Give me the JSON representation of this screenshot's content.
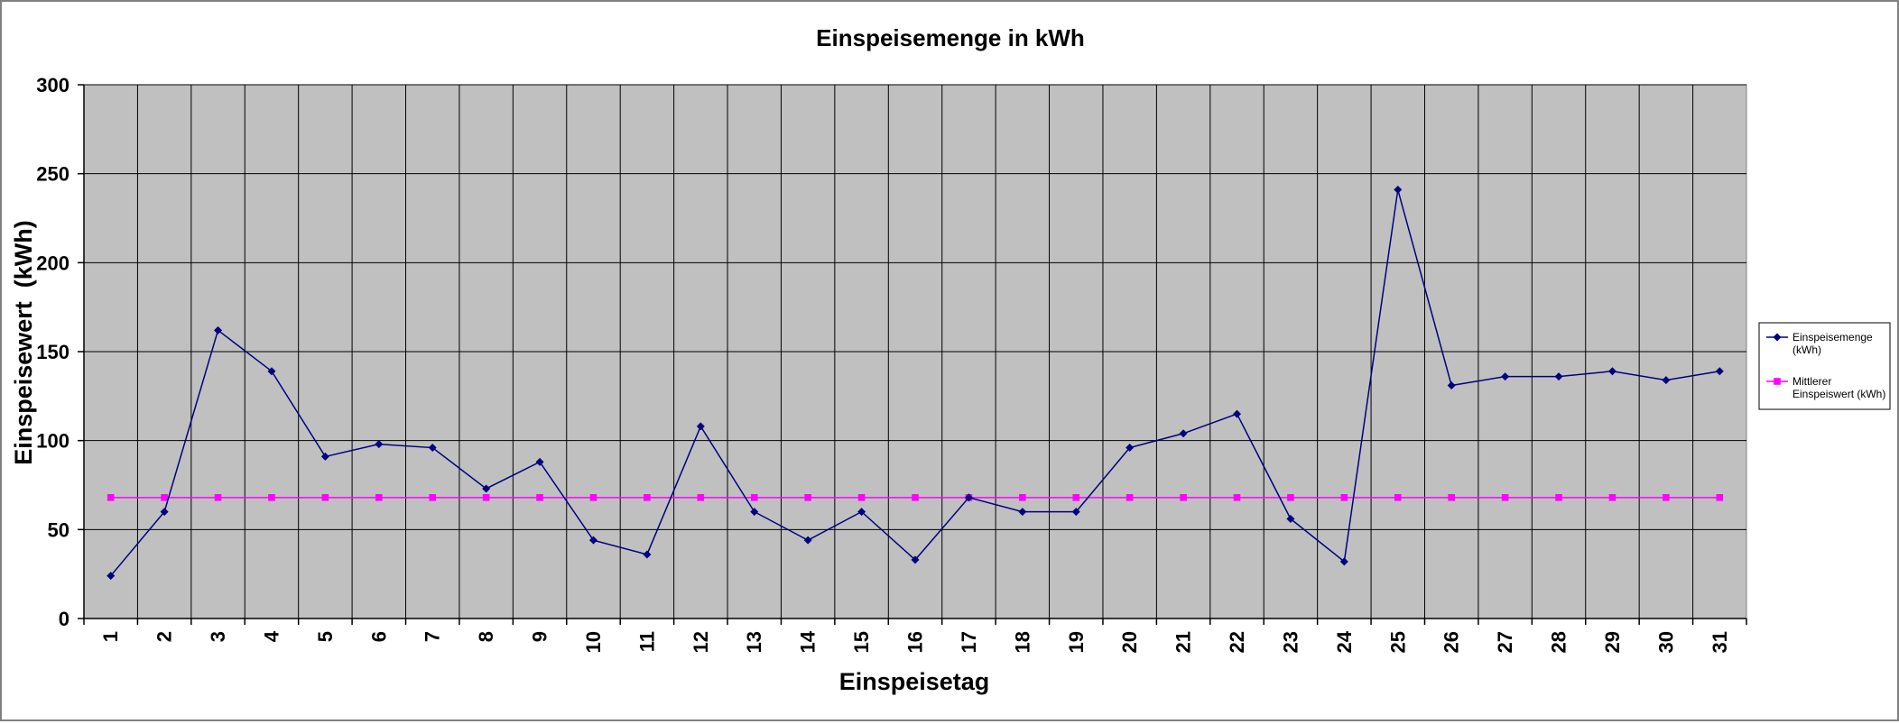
{
  "chart_data": {
    "type": "line",
    "title": "Einspeisemenge in kWh",
    "xlabel": "Einspeisetag",
    "ylabel": "Einspeisewert  (kWh)",
    "ylim": [
      0,
      300
    ],
    "yticks": [
      0,
      50,
      100,
      150,
      200,
      250,
      300
    ],
    "grid": true,
    "legend_position": "right",
    "plot_background": "#c0c0c0",
    "categories": [
      "1",
      "2",
      "3",
      "4",
      "5",
      "6",
      "7",
      "8",
      "9",
      "10",
      "11",
      "12",
      "13",
      "14",
      "15",
      "16",
      "17",
      "18",
      "19",
      "20",
      "21",
      "22",
      "23",
      "24",
      "25",
      "26",
      "27",
      "28",
      "29",
      "30",
      "31"
    ],
    "series": [
      {
        "name": "Einspeisemenge (kWh)",
        "legend_lines": [
          "Einspeisemenge",
          "(kWh)"
        ],
        "color": "#000080",
        "marker": "diamond",
        "values": [
          24,
          60,
          162,
          139,
          91,
          98,
          96,
          73,
          88,
          44,
          36,
          108,
          60,
          44,
          60,
          33,
          68,
          60,
          60,
          96,
          104,
          115,
          56,
          32,
          241,
          131,
          136,
          136,
          139,
          134,
          139
        ]
      },
      {
        "name": "Mittlerer Einspeiswert (kWh)",
        "legend_lines": [
          "Mittlerer",
          "Einspeiswert (kWh)"
        ],
        "color": "#ff00ff",
        "marker": "square",
        "values": [
          68,
          68,
          68,
          68,
          68,
          68,
          68,
          68,
          68,
          68,
          68,
          68,
          68,
          68,
          68,
          68,
          68,
          68,
          68,
          68,
          68,
          68,
          68,
          68,
          68,
          68,
          68,
          68,
          68,
          68,
          68
        ]
      }
    ]
  }
}
